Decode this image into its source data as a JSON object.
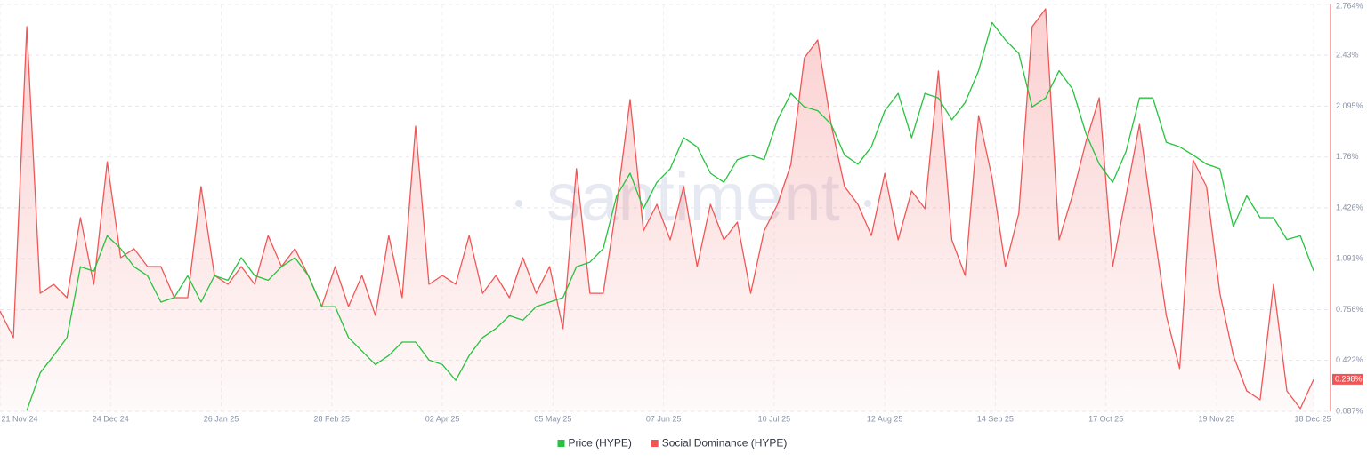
{
  "chart_data": {
    "type": "line",
    "watermark": "santiment",
    "x": [
      "2024-11-21",
      "2024-11-25",
      "2024-11-29",
      "2024-12-03",
      "2024-12-07",
      "2024-12-11",
      "2024-12-15",
      "2024-12-19",
      "2024-12-23",
      "2024-12-27",
      "2024-12-31",
      "2025-01-04",
      "2025-01-08",
      "2025-01-12",
      "2025-01-16",
      "2025-01-20",
      "2025-01-24",
      "2025-01-28",
      "2025-02-01",
      "2025-02-05",
      "2025-02-09",
      "2025-02-13",
      "2025-02-17",
      "2025-02-21",
      "2025-02-25",
      "2025-03-01",
      "2025-03-05",
      "2025-03-09",
      "2025-03-13",
      "2025-03-17",
      "2025-03-21",
      "2025-03-25",
      "2025-03-29",
      "2025-04-02",
      "2025-04-06",
      "2025-04-10",
      "2025-04-14",
      "2025-04-18",
      "2025-04-22",
      "2025-04-26",
      "2025-04-30",
      "2025-05-04",
      "2025-05-08",
      "2025-05-12",
      "2025-05-16",
      "2025-05-20",
      "2025-05-24",
      "2025-05-28",
      "2025-06-01",
      "2025-06-05",
      "2025-06-09",
      "2025-06-13",
      "2025-06-17",
      "2025-06-21",
      "2025-06-25",
      "2025-06-29",
      "2025-07-03",
      "2025-07-07",
      "2025-07-11",
      "2025-07-15",
      "2025-07-19",
      "2025-07-23",
      "2025-07-27",
      "2025-07-31",
      "2025-08-04",
      "2025-08-08",
      "2025-08-12",
      "2025-08-16",
      "2025-08-20",
      "2025-08-24",
      "2025-08-28",
      "2025-09-01",
      "2025-09-05",
      "2025-09-09",
      "2025-09-13",
      "2025-09-17",
      "2025-09-21",
      "2025-09-25",
      "2025-09-29",
      "2025-10-03",
      "2025-10-07",
      "2025-10-11",
      "2025-10-15",
      "2025-10-19",
      "2025-10-23",
      "2025-10-27",
      "2025-10-31",
      "2025-11-04",
      "2025-11-08",
      "2025-11-12",
      "2025-11-16",
      "2025-11-20",
      "2025-11-24",
      "2025-11-28",
      "2025-12-02",
      "2025-12-06",
      "2025-12-10",
      "2025-12-14",
      "2025-12-18"
    ],
    "xlim": [
      "2024-11-21",
      "2025-12-23"
    ],
    "xticks": [
      {
        "value": "2024-11-21",
        "label": "21 Nov 24"
      },
      {
        "value": "2024-12-24",
        "label": "24 Dec 24"
      },
      {
        "value": "2025-01-26",
        "label": "26 Jan 25"
      },
      {
        "value": "2025-02-28",
        "label": "28 Feb 25"
      },
      {
        "value": "2025-04-02",
        "label": "02 Apr 25"
      },
      {
        "value": "2025-05-05",
        "label": "05 May 25"
      },
      {
        "value": "2025-06-07",
        "label": "07 Jun 25"
      },
      {
        "value": "2025-07-10",
        "label": "10 Jul 25"
      },
      {
        "value": "2025-08-12",
        "label": "12 Aug 25"
      },
      {
        "value": "2025-09-14",
        "label": "14 Sep 25"
      },
      {
        "value": "2025-10-17",
        "label": "17 Oct 25"
      },
      {
        "value": "2025-11-19",
        "label": "19 Nov 25"
      },
      {
        "value": "2025-12-18",
        "label": "18 Dec 25"
      }
    ],
    "ylim": [
      6,
      60
    ],
    "y2lim": [
      0.087,
      2.764
    ],
    "y2ticks": [
      {
        "value": 0.087,
        "label": "0.087%"
      },
      {
        "value": 0.422,
        "label": "0.422%"
      },
      {
        "value": 0.756,
        "label": "0.756%"
      },
      {
        "value": 1.091,
        "label": "1.091%"
      },
      {
        "value": 1.426,
        "label": "1.426%"
      },
      {
        "value": 1.76,
        "label": "1.76%"
      },
      {
        "value": 2.095,
        "label": "2.095%"
      },
      {
        "value": 2.43,
        "label": "2.43%"
      },
      {
        "value": 2.764,
        "label": "2.764%"
      }
    ],
    "grid": true,
    "series": [
      {
        "name": "Price (HYPE)",
        "color": "#26c33e",
        "axis": "y",
        "values": [
          null,
          null,
          6.1,
          11.1,
          13.4,
          15.8,
          25.2,
          24.6,
          29.3,
          27.6,
          25.2,
          24.0,
          20.5,
          21.1,
          24.0,
          20.5,
          24.0,
          23.4,
          26.4,
          24.0,
          23.4,
          25.2,
          26.4,
          24.0,
          19.9,
          19.9,
          15.8,
          14.0,
          12.2,
          13.4,
          15.2,
          15.2,
          12.8,
          12.2,
          10.1,
          13.4,
          15.8,
          17.0,
          18.7,
          18.1,
          19.9,
          20.5,
          21.1,
          25.2,
          25.8,
          27.6,
          34.6,
          37.6,
          32.9,
          36.4,
          38.2,
          42.3,
          41.1,
          37.6,
          36.4,
          39.4,
          40.0,
          39.4,
          44.7,
          48.2,
          46.4,
          45.9,
          44.1,
          40.0,
          38.8,
          41.1,
          45.9,
          48.2,
          42.3,
          48.2,
          47.6,
          44.7,
          47.0,
          51.2,
          57.6,
          55.3,
          53.5,
          46.4,
          47.6,
          51.2,
          48.8,
          42.9,
          38.8,
          36.4,
          40.5,
          47.6,
          47.6,
          41.7,
          41.1,
          40.0,
          38.8,
          38.2,
          30.5,
          34.6,
          31.7,
          31.7,
          28.8,
          29.3,
          24.6
        ]
      },
      {
        "name": "Social Dominance (HYPE)",
        "color": "#f05656",
        "axis": "y2",
        "last_value_label": "0.298%",
        "values": [
          0.747,
          0.572,
          2.618,
          0.864,
          0.923,
          0.835,
          1.361,
          0.923,
          1.729,
          1.098,
          1.157,
          1.04,
          1.04,
          0.835,
          0.835,
          1.566,
          0.981,
          0.923,
          1.04,
          0.923,
          1.244,
          1.04,
          1.157,
          0.981,
          0.777,
          1.04,
          0.777,
          0.981,
          0.718,
          1.244,
          0.835,
          1.963,
          0.923,
          0.981,
          0.923,
          1.244,
          0.864,
          0.981,
          0.835,
          1.098,
          0.864,
          1.04,
          0.631,
          1.683,
          0.864,
          0.864,
          1.449,
          2.139,
          1.274,
          1.449,
          1.215,
          1.566,
          1.04,
          1.449,
          1.215,
          1.332,
          0.864,
          1.274,
          1.449,
          1.712,
          2.413,
          2.53,
          1.975,
          1.566,
          1.449,
          1.244,
          1.653,
          1.215,
          1.537,
          1.42,
          2.326,
          1.215,
          0.981,
          2.033,
          1.624,
          1.04,
          1.39,
          2.618,
          2.735,
          1.215,
          1.507,
          1.858,
          2.15,
          1.04,
          1.507,
          1.975,
          1.332,
          0.718,
          0.368,
          1.741,
          1.566,
          0.864,
          0.455,
          0.221,
          0.163,
          0.923,
          0.221,
          0.105,
          0.298
        ]
      }
    ]
  }
}
